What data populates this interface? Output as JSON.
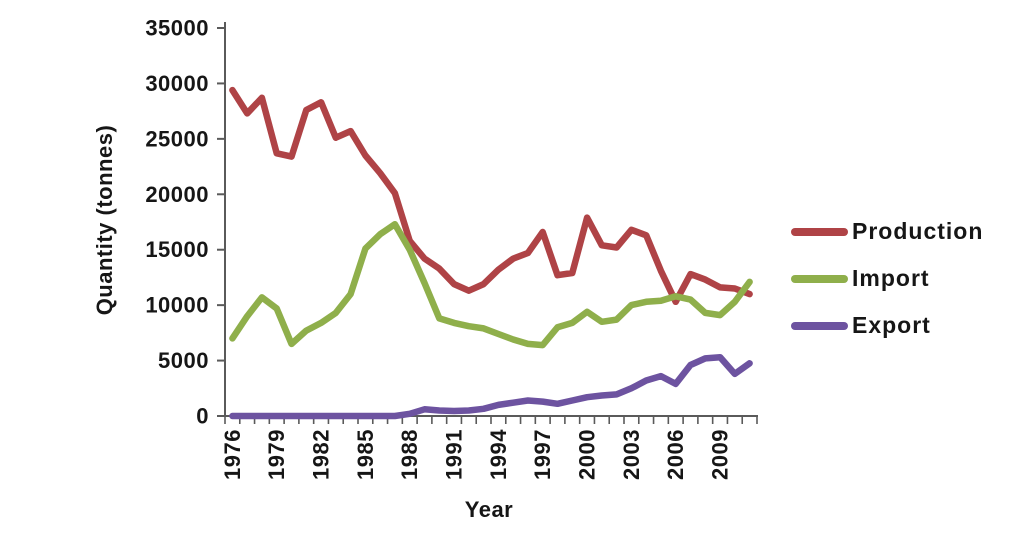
{
  "chart_data": {
    "type": "line",
    "x": [
      1976,
      1977,
      1978,
      1979,
      1980,
      1981,
      1982,
      1983,
      1984,
      1985,
      1986,
      1987,
      1988,
      1989,
      1990,
      1991,
      1992,
      1993,
      1994,
      1995,
      1996,
      1997,
      1998,
      1999,
      2000,
      2001,
      2002,
      2003,
      2004,
      2005,
      2006,
      2007,
      2008,
      2009,
      2010,
      2011
    ],
    "series": [
      {
        "name": "Production",
        "color": "#AF4346",
        "values": [
          29400,
          27300,
          28700,
          23700,
          23400,
          27600,
          28300,
          25100,
          25700,
          23500,
          21900,
          20100,
          15800,
          14200,
          13300,
          11900,
          11300,
          11900,
          13200,
          14200,
          14700,
          16600,
          12700,
          12900,
          17900,
          15400,
          15200,
          16800,
          16300,
          13100,
          10300,
          12800,
          12300,
          11600,
          11500,
          11000
        ]
      },
      {
        "name": "Import",
        "color": "#8FAF4B",
        "values": [
          7000,
          9000,
          10700,
          9700,
          6500,
          7700,
          8400,
          9300,
          11000,
          15100,
          16400,
          17300,
          15000,
          12000,
          8800,
          8400,
          8100,
          7900,
          7400,
          6900,
          6500,
          6400,
          8000,
          8400,
          9400,
          8500,
          8700,
          10000,
          10300,
          10400,
          10800,
          10500,
          9300,
          9100,
          10300,
          12100
        ]
      },
      {
        "name": "Export",
        "color": "#6D53A0",
        "values": [
          0,
          0,
          0,
          0,
          0,
          0,
          0,
          0,
          0,
          0,
          0,
          0,
          200,
          600,
          500,
          450,
          500,
          650,
          1000,
          1200,
          1400,
          1300,
          1100,
          1400,
          1700,
          1850,
          1950,
          2500,
          3200,
          3600,
          2900,
          4600,
          5200,
          5300,
          3800,
          4750
        ]
      }
    ],
    "xlabel": "Year",
    "ylabel": "Quantity (tonnes)",
    "ylim": [
      0,
      35000
    ],
    "ytick_step": 5000,
    "yticks": [
      "0",
      "5000",
      "10000",
      "15000",
      "20000",
      "25000",
      "30000",
      "35000"
    ],
    "xtick_labels": [
      "1976",
      "1979",
      "1982",
      "1985",
      "1988",
      "1991",
      "1994",
      "1997",
      "2000",
      "2003",
      "2006",
      "2009"
    ],
    "grid": false,
    "legend_position": "right",
    "axis_color": "#5a5a5a"
  }
}
